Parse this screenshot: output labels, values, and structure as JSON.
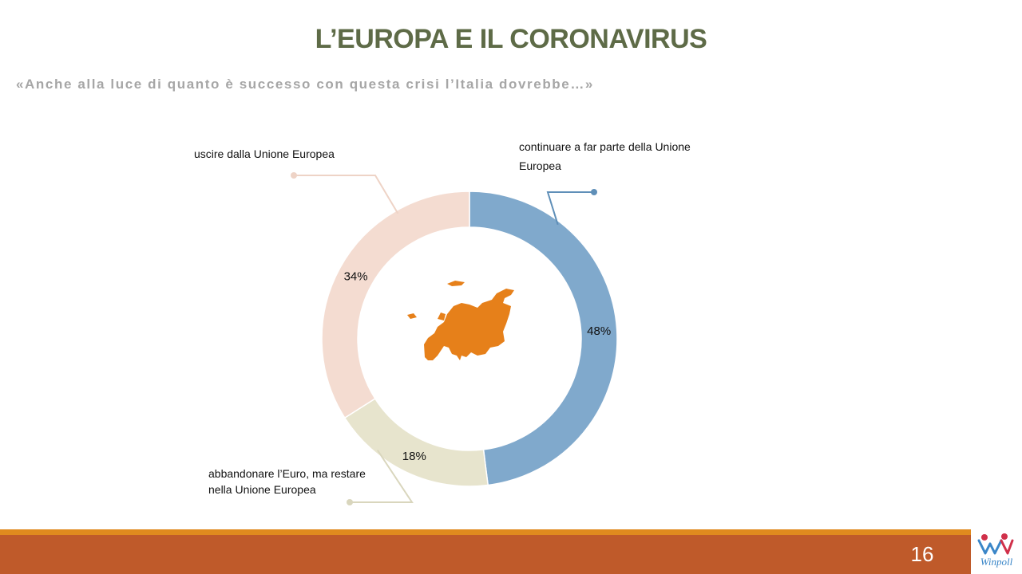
{
  "slide": {
    "title": "L’EUROPA E IL CORONAVIRUS",
    "subtitle": "«Anche alla luce di quanto è successo con questa crisi l’Italia dovrebbe…»",
    "page_number": "16",
    "logo_text": "Winpoll"
  },
  "colors": {
    "title": "#5e6b47",
    "subtitle": "#a6a6a6",
    "footer": "#bf5a2a",
    "footer_accent": "#e08a1e",
    "europe_map": "#e6801a"
  },
  "center_icon": "europe-map-icon",
  "chart_data": {
    "type": "pie",
    "donut": true,
    "title": "",
    "slices": [
      {
        "name": "continuare a far parte della Unione Europea",
        "value": 48,
        "label": "48%",
        "color": "#80a9cc"
      },
      {
        "name": "abbandonare l’Euro, ma restare nella Unione Europea",
        "value": 18,
        "label": "18%",
        "color": "#e7e4cd"
      },
      {
        "name": "uscire dalla Unione Europea",
        "value": 34,
        "label": "34%",
        "color": "#f4dcd1"
      }
    ]
  }
}
